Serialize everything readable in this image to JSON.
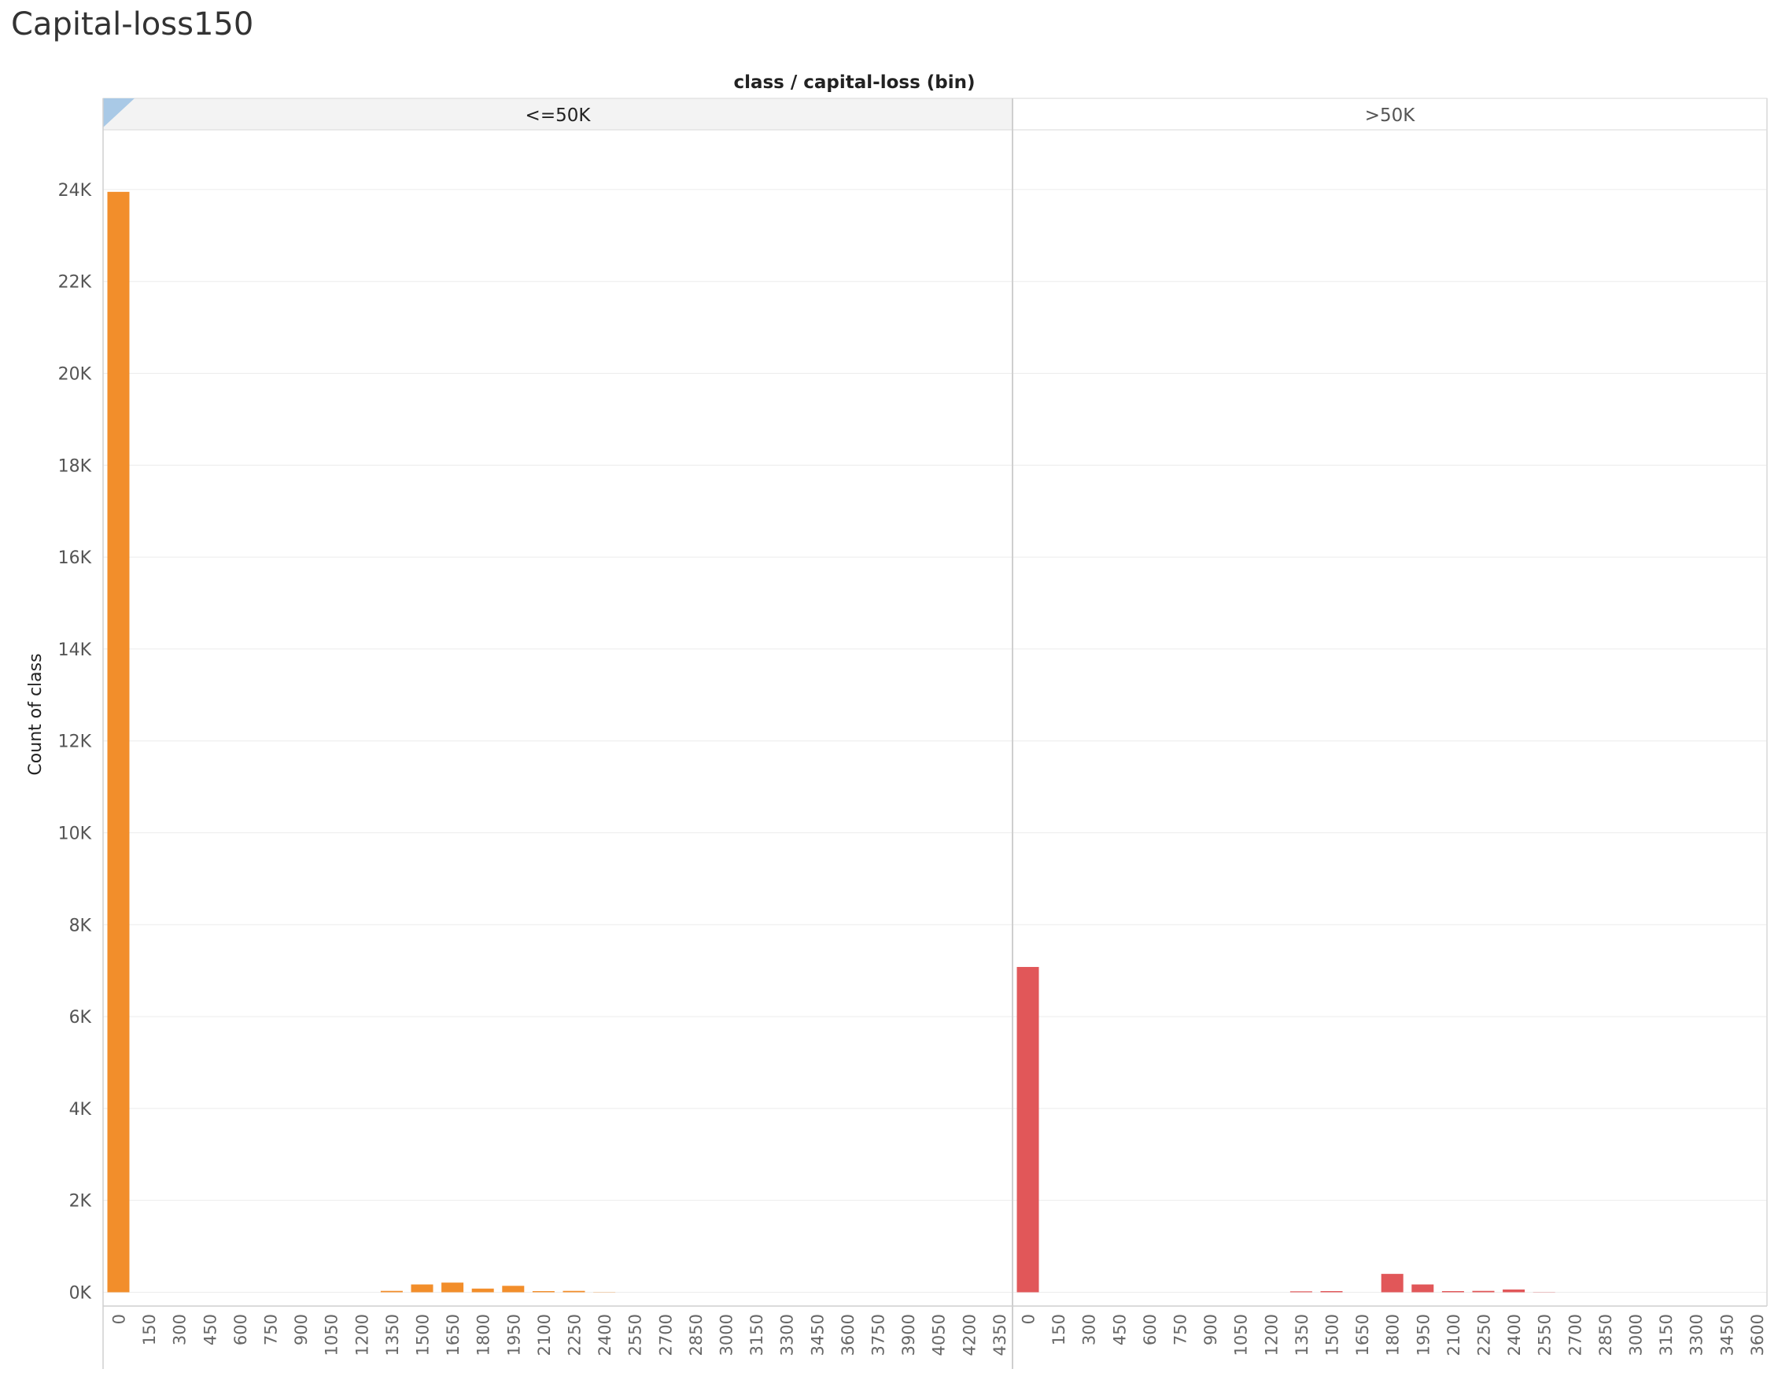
{
  "title": "Capital-loss150",
  "chart_data": {
    "type": "bar",
    "header": "class  /  capital-loss (bin)",
    "ylabel": "Count of class",
    "ylim": [
      -300,
      25300
    ],
    "yticks": [
      0,
      2000,
      4000,
      6000,
      8000,
      10000,
      12000,
      14000,
      16000,
      18000,
      20000,
      22000,
      24000
    ],
    "ytick_labels": [
      "0K",
      "2K",
      "4K",
      "6K",
      "8K",
      "10K",
      "12K",
      "14K",
      "16K",
      "18K",
      "20K",
      "22K",
      "24K"
    ],
    "grid": true,
    "panels": [
      {
        "name": "<=50K",
        "color": "#f28e2b",
        "categories": [
          "0",
          "150",
          "300",
          "450",
          "600",
          "750",
          "900",
          "1050",
          "1200",
          "1350",
          "1500",
          "1650",
          "1800",
          "1950",
          "2100",
          "2250",
          "2400",
          "2550",
          "2700",
          "2850",
          "3000",
          "3150",
          "3300",
          "3450",
          "3600",
          "3750",
          "3900",
          "4050",
          "4200",
          "4350"
        ],
        "values": [
          23950,
          0,
          0,
          0,
          0,
          0,
          0,
          0,
          0,
          30,
          170,
          210,
          80,
          140,
          25,
          30,
          5,
          0,
          0,
          0,
          0,
          0,
          0,
          0,
          0,
          0,
          0,
          0,
          0,
          0
        ]
      },
      {
        "name": ">50K",
        "color": "#e15759",
        "categories": [
          "0",
          "150",
          "300",
          "450",
          "600",
          "750",
          "900",
          "1050",
          "1200",
          "1350",
          "1500",
          "1650",
          "1800",
          "1950",
          "2100",
          "2250",
          "2400",
          "2550",
          "2700",
          "2850",
          "3000",
          "3150",
          "3300",
          "3450",
          "3600"
        ],
        "values": [
          7080,
          0,
          0,
          0,
          0,
          0,
          0,
          0,
          0,
          20,
          25,
          0,
          400,
          170,
          25,
          30,
          60,
          5,
          0,
          0,
          0,
          0,
          0,
          0,
          0
        ]
      }
    ]
  }
}
